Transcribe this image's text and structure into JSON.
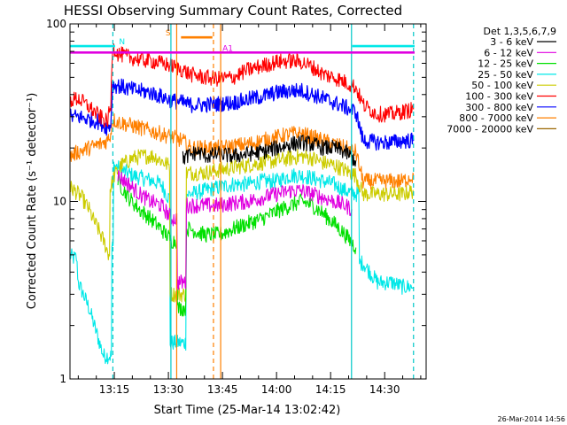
{
  "chart_data": {
    "type": "line",
    "title": "HESSI Observing Summary Count Rates, Corrected",
    "xlabel": "Start Time (25-Mar-14 13:02:42)",
    "ylabel": "Corrected Count Rate (s⁻¹ detector⁻¹)",
    "x_tick_labels": [
      "13:15",
      "13:30",
      "13:45",
      "14:00",
      "14:15",
      "14:30"
    ],
    "x_ticks_min_after_1300": [
      15,
      30,
      45,
      60,
      75,
      90
    ],
    "x_range_min_after_1300": [
      2.7,
      101.5
    ],
    "y_scale": "log",
    "ylim": [
      1,
      100
    ],
    "y_tick_labels": [
      "1",
      "10",
      "100"
    ],
    "legend_title": "Det 1,3,5,6,7,9",
    "legend_placement": "right",
    "timestamp": "26-Mar-2014 14:56",
    "series": [
      {
        "name": "3 - 6 keV",
        "color": "#000000",
        "t": [
          34,
          38,
          41,
          44,
          48,
          52,
          56,
          60,
          64,
          67,
          70,
          73,
          76,
          79,
          82
        ],
        "v": [
          17.5,
          19,
          18,
          18.5,
          18,
          18.5,
          19,
          20,
          21,
          21.5,
          21,
          20,
          20,
          19,
          17
        ]
      },
      {
        "name": "6 - 12 keV",
        "color": "#e000e0",
        "t": [
          16,
          19,
          22,
          25,
          28,
          31,
          34,
          36,
          40,
          44,
          48,
          52,
          56,
          60,
          64,
          67,
          70,
          73,
          76,
          79,
          81
        ],
        "v": [
          14,
          12.5,
          11,
          10,
          9.5,
          8,
          3.5,
          9.5,
          9.5,
          9.5,
          9.8,
          10,
          10.5,
          11,
          11.5,
          11.5,
          11,
          10.5,
          10,
          9.5,
          9
        ]
      },
      {
        "name": "12 - 25 keV",
        "color": "#00e000",
        "t": [
          16,
          19,
          22,
          25,
          28,
          31,
          34,
          36,
          40,
          44,
          48,
          52,
          56,
          60,
          64,
          67,
          70,
          73,
          76,
          79,
          82
        ],
        "v": [
          13,
          10.5,
          9,
          8,
          7,
          6,
          2.5,
          7,
          6.5,
          6.5,
          7,
          7.5,
          8,
          8.8,
          9.5,
          10,
          9.5,
          8.5,
          7.5,
          6.5,
          5.5
        ]
      },
      {
        "name": "25 - 50 keV",
        "color": "#00e8e8",
        "t": [
          2.7,
          3.5,
          4.5,
          5,
          8,
          12,
          13.5,
          14,
          14.5,
          15,
          17,
          20,
          23,
          26,
          28,
          30,
          31,
          34,
          36,
          40,
          44,
          48,
          52,
          56,
          60,
          64,
          67,
          70,
          73,
          76,
          79,
          82,
          84,
          88,
          92,
          95,
          98
        ],
        "v": [
          5,
          4.8,
          4.8,
          3.5,
          2.5,
          1.35,
          1.35,
          1.35,
          5.5,
          16,
          15,
          14,
          13.5,
          13,
          12.5,
          10.5,
          1.6,
          1.6,
          11,
          11.5,
          12,
          12.5,
          12.5,
          13,
          13,
          14,
          14,
          13.5,
          13,
          12.5,
          11.5,
          11,
          4.5,
          3.5,
          3.5,
          3.3,
          3.3
        ]
      },
      {
        "name": "50 - 100 keV",
        "color": "#cccc00",
        "t": [
          2.7,
          4,
          6,
          8,
          9,
          10.5,
          12,
          13.5,
          14,
          15,
          17,
          20,
          23,
          26,
          28,
          30,
          31,
          34,
          36,
          40,
          44,
          48,
          52,
          56,
          60,
          64,
          67,
          70,
          73,
          76,
          79,
          82,
          84,
          88,
          92,
          95,
          98
        ],
        "v": [
          12,
          11.5,
          10.5,
          9,
          8,
          7,
          6,
          5,
          12,
          14,
          16,
          17.5,
          18,
          18,
          17,
          16,
          3,
          3,
          14.5,
          14.5,
          15,
          15.5,
          16,
          16.5,
          17,
          17.5,
          18,
          17.5,
          16.5,
          16,
          15,
          14,
          11,
          11,
          11,
          11,
          11.5
        ]
      },
      {
        "name": "100 - 300 keV",
        "color": "#ff0000",
        "t": [
          2.7,
          5,
          8,
          11,
          13,
          14,
          14.5,
          16,
          19,
          22,
          25,
          28,
          31,
          34,
          36,
          40,
          44,
          48,
          52,
          56,
          60,
          64,
          67,
          70,
          73,
          76,
          79,
          82,
          84,
          88,
          92,
          95,
          98
        ],
        "v": [
          37,
          38,
          34,
          30,
          28,
          34,
          75,
          68,
          65,
          63,
          62,
          60,
          58,
          55,
          52,
          50,
          49,
          50,
          55,
          58,
          61,
          62,
          61,
          57,
          52,
          50,
          47,
          44,
          35,
          31,
          31,
          32,
          33
        ]
      },
      {
        "name": "300 - 800 keV",
        "color": "#0000ff",
        "t": [
          2.7,
          5,
          8,
          11,
          13,
          14,
          14.5,
          16,
          19,
          22,
          25,
          28,
          31,
          34,
          36,
          40,
          44,
          48,
          52,
          56,
          60,
          64,
          67,
          70,
          73,
          76,
          79,
          82,
          84,
          88,
          92,
          95,
          98
        ],
        "v": [
          30,
          30,
          29,
          28,
          26,
          27,
          45,
          45,
          43,
          42,
          41,
          39,
          37,
          36,
          35,
          35,
          35.5,
          36,
          37.5,
          39,
          41,
          42,
          42,
          40,
          38,
          36,
          34,
          32,
          22,
          21.5,
          21.5,
          22,
          22
        ]
      },
      {
        "name": "800 - 7000 keV",
        "color": "#ff8000",
        "t": [
          2.7,
          5,
          8,
          11,
          13,
          14,
          14.5,
          16,
          19,
          22,
          25,
          28,
          31,
          34,
          36,
          40,
          44,
          48,
          52,
          56,
          60,
          64,
          67,
          70,
          73,
          76,
          79,
          82,
          84,
          88,
          92,
          95,
          98
        ],
        "v": [
          18,
          19,
          20,
          21,
          22,
          24,
          29,
          28,
          27,
          26,
          25,
          24,
          23,
          22,
          20,
          20,
          20,
          20.5,
          21,
          22,
          23,
          24,
          24,
          23,
          22,
          21,
          20,
          19,
          13,
          13,
          13,
          13,
          14
        ]
      },
      {
        "name": "7000 - 20000 keV",
        "color": "#996600",
        "t": [],
        "v": []
      }
    ],
    "annotations": {
      "vertical_lines": [
        {
          "t": 14.6,
          "color": "#00c8c8",
          "style": "dashed"
        },
        {
          "t": 30.7,
          "color": "#00c8c8",
          "style": "solid"
        },
        {
          "t": 32.3,
          "color": "#ff8000",
          "style": "solid"
        },
        {
          "t": 42.5,
          "color": "#ff8000",
          "style": "dashed"
        },
        {
          "t": 44.5,
          "color": "#ff8000",
          "style": "solid"
        },
        {
          "t": 80.8,
          "color": "#00c8c8",
          "style": "solid"
        },
        {
          "t": 98.0,
          "color": "#00c8c8",
          "style": "dashed"
        }
      ],
      "bars": [
        {
          "label": "N",
          "color": "#00e8e8",
          "t0": 2.7,
          "t1": 15.2,
          "v": 75,
          "label_t": 16.3
        },
        {
          "label": "",
          "color": "#00e8e8",
          "t0": 81.0,
          "t1": 98.3,
          "v": 75,
          "label_t": null
        },
        {
          "label": "S",
          "color": "#ff8000",
          "t0": 33.5,
          "t1": 42.2,
          "v": 84,
          "label_t": 29.2
        },
        {
          "label": "A1",
          "color": "#e000e0",
          "t0": 2.7,
          "t1": 98.3,
          "v": 69,
          "label_t": 45
        }
      ]
    }
  }
}
